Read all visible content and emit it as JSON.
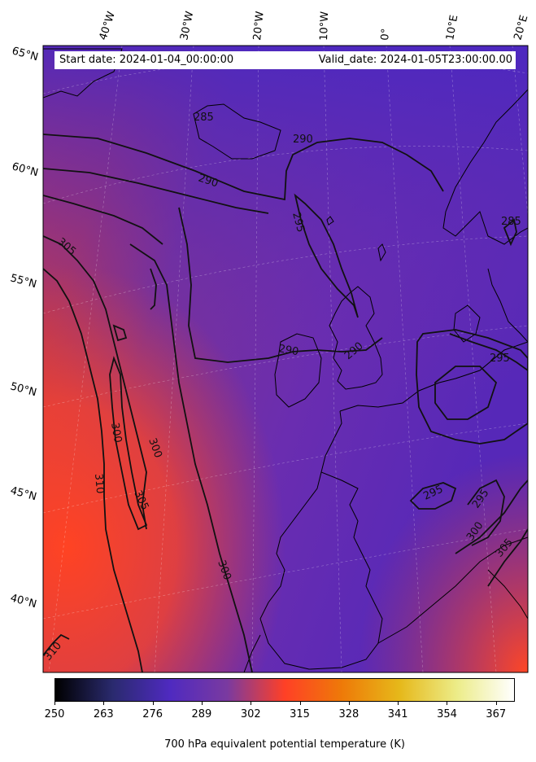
{
  "header": {
    "start_date": "Start date: 2024-01-04_00:00:00",
    "valid_date": "Valid_date: 2024-01-05T23:00:00.00"
  },
  "map": {
    "lon_labels": [
      "40°W",
      "30°W",
      "20°W",
      "10°W",
      "0°",
      "10°E",
      "20°E"
    ],
    "lat_labels": [
      "65°N",
      "60°N",
      "55°N",
      "50°N",
      "45°N",
      "40°N"
    ],
    "contour_labels": [
      "285",
      "290",
      "290",
      "295",
      "290",
      "290",
      "295",
      "285",
      "295",
      "305",
      "300",
      "300",
      "310",
      "305",
      "300",
      "295",
      "300",
      "305",
      "310"
    ]
  },
  "colorbar": {
    "ticks": [
      "250",
      "263",
      "276",
      "289",
      "302",
      "315",
      "328",
      "341",
      "354",
      "367"
    ],
    "min": 250,
    "max": 372,
    "label": "700 hPa equivalent potential temperature (K)",
    "colormap": "CMRmap-like: black → indigo → purple → red-orange → orange → yellow → white",
    "colors": [
      "#000000",
      "#2a2a6e",
      "#4f2ac0",
      "#7a3aa0",
      "#ff4026",
      "#ee7a08",
      "#e6b81a",
      "#ecec88",
      "#ffffff"
    ]
  }
}
